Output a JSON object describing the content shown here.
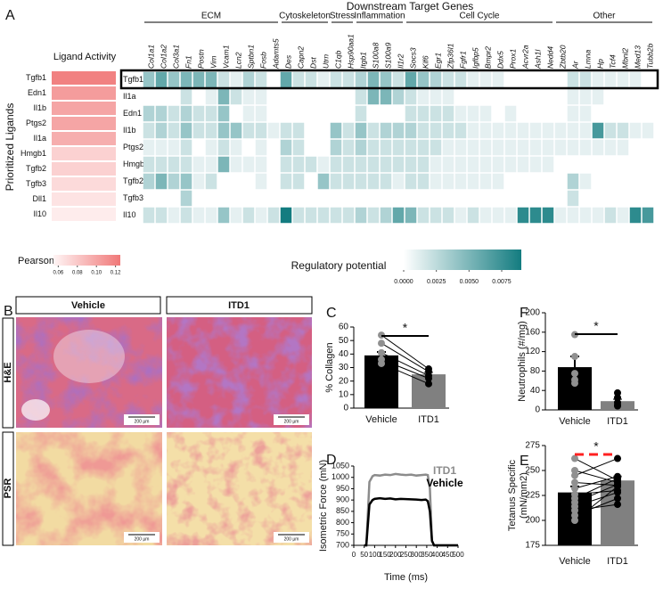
{
  "chart_data": [
    {
      "type": "heatmap",
      "title": "Ligand Activity",
      "ylabel": "Prioritized Ligands",
      "categories": [
        "Tgfb1",
        "Edn1",
        "Il1b",
        "Ptgs2",
        "Il1a",
        "Hmgb1",
        "Tgfb2",
        "Tgfb3",
        "Dll1",
        "Il10"
      ],
      "values": [
        0.12,
        0.105,
        0.1,
        0.1,
        0.095,
        0.075,
        0.075,
        0.07,
        0.065,
        0.06
      ],
      "colorbar_label": "Pearson",
      "colorlim": [
        0.055,
        0.125
      ],
      "colorticks": [
        0.06,
        0.08,
        {
          "value": 0.1,
          "label": "0.10"
        },
        0.12
      ],
      "colors": [
        "#fff5f5",
        "#f07878"
      ]
    },
    {
      "type": "heatmap",
      "panel_label": "A",
      "title": "Downstream Target Genes",
      "gene_groups": [
        {
          "name": "ECM",
          "genes": [
            "Col1a1",
            "Col1a2",
            "Col3a1",
            "Fn1",
            "Postn",
            "Vim",
            "Vcam1",
            "Lcn2",
            "Sptbn1",
            "Fosb",
            "Adamts5"
          ]
        },
        {
          "name": "Cytoskeleton",
          "genes": [
            "Des",
            "Capn2",
            "Dst",
            "Utrn"
          ]
        },
        {
          "name": "Stress",
          "genes": [
            "C1qb",
            "Hsp90aa1"
          ]
        },
        {
          "name": "Inflammation",
          "genes": [
            "Itgb1",
            "S100a8",
            "S100a9",
            "Il1r2"
          ]
        },
        {
          "name": "Cell Cycle",
          "genes": [
            "Socs3",
            "Klf6",
            "Egr1",
            "Zfp36l1",
            "Fgfr1",
            "Igfbp5",
            "Bmpr2",
            "Ddx5",
            "Prox1",
            "Acvr2a",
            "Ash1l",
            "Nedd4"
          ]
        },
        {
          "name": "Other",
          "genes": [
            "Zbtb20",
            "Ar",
            "Lmna",
            "Hp",
            "Tcf4",
            "Mbnl2",
            "Med13",
            "Tubb2b"
          ]
        }
      ],
      "rows": [
        "Tgfb1",
        "Il1a",
        "Edn1",
        "Il1b",
        "Ptgs2",
        "Hmgb1",
        "Tgfb2",
        "Tgfb3",
        "Il10"
      ],
      "values": [
        [
          0.004,
          0.006,
          0.004,
          0.005,
          0.005,
          0.005,
          0.002,
          0.001,
          0.003,
          0.002,
          null,
          0.006,
          0.002,
          0.002,
          0.001,
          0.002,
          0.002,
          0.003,
          0.005,
          0.004,
          0.002,
          0.006,
          0.004,
          0.003,
          0.002,
          0.002,
          0.001,
          0.001,
          0.001,
          null,
          null,
          null,
          null,
          null,
          0.002,
          0.002,
          0.001,
          0.001,
          0.001,
          0.001,
          null
        ],
        [
          null,
          null,
          null,
          0.002,
          null,
          0.001,
          0.005,
          0.002,
          0.001,
          0.001,
          null,
          null,
          null,
          null,
          null,
          null,
          null,
          0.002,
          0.005,
          0.005,
          0.003,
          0.002,
          0.001,
          0.001,
          0.001,
          null,
          null,
          null,
          null,
          null,
          null,
          null,
          null,
          null,
          0.001,
          0.001,
          0.001,
          null,
          null,
          null,
          null
        ],
        [
          0.003,
          0.003,
          0.002,
          0.003,
          0.002,
          0.002,
          0.004,
          null,
          0.001,
          0.001,
          null,
          null,
          null,
          null,
          null,
          null,
          null,
          0.002,
          null,
          null,
          null,
          0.002,
          0.002,
          0.002,
          0.002,
          0.001,
          0.001,
          0.001,
          null,
          0.001,
          null,
          null,
          null,
          null,
          0.001,
          0.001,
          null,
          null,
          null,
          null,
          null
        ],
        [
          0.002,
          0.003,
          0.002,
          0.004,
          0.002,
          0.002,
          0.004,
          0.004,
          0.002,
          0.002,
          0.001,
          0.002,
          0.002,
          null,
          null,
          0.004,
          0.002,
          0.004,
          0.002,
          0.003,
          0.003,
          0.003,
          0.002,
          0.002,
          0.002,
          0.002,
          0.001,
          0.001,
          0.001,
          0.001,
          0.001,
          0.001,
          0.001,
          0.001,
          0.001,
          0.001,
          0.007,
          0.002,
          0.002,
          0.001,
          0.001
        ],
        [
          0.001,
          0.001,
          0.001,
          0.002,
          null,
          0.001,
          0.002,
          0.001,
          null,
          0.001,
          null,
          0.003,
          0.002,
          null,
          null,
          0.003,
          0.002,
          0.003,
          0.002,
          0.002,
          0.002,
          0.002,
          0.002,
          0.002,
          0.001,
          0.001,
          0.001,
          0.001,
          0.001,
          0.001,
          0.001,
          0.001,
          0.001,
          0.001,
          0.001,
          0.001,
          0.001,
          0.001,
          0.001,
          null,
          null
        ],
        [
          0.002,
          0.002,
          0.002,
          0.002,
          0.001,
          0.001,
          0.005,
          0.001,
          0.001,
          0.001,
          null,
          0.002,
          0.002,
          0.002,
          0.001,
          0.002,
          0.002,
          0.002,
          0.002,
          0.002,
          0.002,
          0.002,
          0.002,
          0.001,
          0.001,
          0.001,
          0.001,
          0.001,
          0.001,
          0.001,
          0.001,
          0.001,
          0.001,
          null,
          null,
          null,
          null,
          null,
          null,
          null,
          null
        ],
        [
          0.003,
          0.005,
          0.003,
          0.004,
          0.001,
          0.002,
          null,
          null,
          null,
          0.001,
          null,
          0.002,
          0.002,
          null,
          0.004,
          0.002,
          0.002,
          0.002,
          0.002,
          0.002,
          0.001,
          0.002,
          0.002,
          0.001,
          0.001,
          0.001,
          0.001,
          0.001,
          0.001,
          null,
          null,
          null,
          null,
          null,
          0.003,
          0.001,
          null,
          null,
          null,
          null,
          null
        ],
        [
          null,
          null,
          null,
          0.003,
          null,
          null,
          null,
          null,
          null,
          null,
          null,
          null,
          null,
          null,
          null,
          null,
          null,
          null,
          null,
          null,
          null,
          null,
          null,
          null,
          null,
          null,
          null,
          null,
          null,
          null,
          null,
          null,
          null,
          null,
          0.002,
          null,
          null,
          null,
          null,
          null,
          null
        ],
        [
          0.002,
          0.002,
          0.001,
          0.002,
          0.001,
          0.001,
          0.004,
          0.001,
          0.002,
          0.001,
          0.002,
          0.009,
          0.002,
          0.002,
          0.002,
          0.002,
          0.002,
          0.003,
          0.002,
          0.003,
          0.006,
          0.005,
          0.002,
          0.002,
          0.002,
          0.001,
          0.002,
          0.001,
          0.001,
          0.001,
          0.008,
          0.008,
          0.008,
          0.001,
          0.001,
          0.001,
          0.001,
          0.002,
          0.001,
          0.008,
          0.007
        ]
      ],
      "colorbar_label": "Regulatory potential",
      "colorlim": [
        0,
        0.009
      ],
      "colorticks": [
        {
          "value": 0,
          "label": "0.0000"
        },
        {
          "value": 0.0025,
          "label": "0.0025"
        },
        {
          "value": 0.005,
          "label": "0.0050"
        },
        {
          "value": 0.0075,
          "label": "0.0075"
        }
      ],
      "colors": [
        "#ffffff",
        "#137c80"
      ]
    },
    {
      "type": "image_grid",
      "panel_label": "B",
      "columns": [
        "Vehicle",
        "ITD1"
      ],
      "rows": [
        "H&E",
        "PSR"
      ],
      "scale_bar": "200 µm"
    },
    {
      "type": "bar",
      "panel_label": "C",
      "ylabel": "% Collagen",
      "categories": [
        "Vehicle",
        "ITD1"
      ],
      "values": [
        39,
        25
      ],
      "errors": [
        2.5,
        1.5
      ],
      "points": [
        [
          54,
          48,
          41,
          36,
          33
        ],
        [
          29,
          27,
          24,
          22,
          18
        ]
      ],
      "paired": true,
      "annotation": "*",
      "ylim": [
        0,
        60
      ],
      "yticks": [
        0,
        10,
        20,
        30,
        40,
        50,
        60
      ],
      "colors": [
        "#000000",
        "#808080"
      ],
      "point_colors": [
        "#909090",
        "#000000"
      ],
      "sig_line_color": "#000000",
      "sig_line_dashed": false
    },
    {
      "type": "bar",
      "panel_label": "F",
      "ylabel": "Neutrophils (#/mg)",
      "categories": [
        "Vehicle",
        "ITD1"
      ],
      "values": [
        88,
        18
      ],
      "errors": [
        22,
        4
      ],
      "points": [
        [
          155,
          110,
          75,
          62,
          55
        ],
        [
          35,
          25,
          15,
          10,
          8
        ]
      ],
      "paired": false,
      "annotation": "*",
      "ylim": [
        0,
        200
      ],
      "yticks": [
        0,
        40,
        80,
        120,
        160,
        200
      ],
      "colors": [
        "#000000",
        "#808080"
      ],
      "point_colors": [
        "#909090",
        "#000000"
      ],
      "sig_line_color": "#000000",
      "sig_line_dashed": false
    },
    {
      "type": "line",
      "panel_label": "D",
      "xlabel": "Time (ms)",
      "ylabel": "Isometric Force (mN)",
      "x": [
        50,
        60,
        75,
        90,
        100,
        125,
        150,
        175,
        200,
        225,
        250,
        275,
        300,
        325,
        345,
        355,
        365,
        375,
        385,
        400,
        450,
        500
      ],
      "series": [
        {
          "name": "ITD1",
          "color": "#8c8c8c",
          "values": [
            700,
            700,
            980,
            1005,
            1010,
            1008,
            1012,
            1010,
            1015,
            1012,
            1010,
            1012,
            1008,
            1010,
            1012,
            1010,
            950,
            720,
            700,
            700,
            700,
            700
          ]
        },
        {
          "name": "Vehicle",
          "color": "#000000",
          "values": [
            700,
            700,
            880,
            900,
            905,
            908,
            905,
            907,
            903,
            905,
            904,
            903,
            902,
            900,
            902,
            895,
            850,
            720,
            700,
            700,
            700,
            700
          ]
        }
      ],
      "xlim": [
        0,
        500
      ],
      "xticks": [
        0,
        50,
        100,
        150,
        200,
        250,
        300,
        350,
        400,
        450,
        500
      ],
      "ylim": [
        700,
        1050
      ],
      "yticks": [
        700,
        750,
        800,
        850,
        900,
        950,
        1000,
        1050
      ]
    },
    {
      "type": "bar",
      "panel_label": "E",
      "ylabel": [
        "Tetanus Specific",
        "(mN/mm2)"
      ],
      "categories": [
        "Vehicle",
        "ITD1"
      ],
      "values": [
        228,
        240
      ],
      "errors": [
        6,
        4
      ],
      "points": [
        [
          262,
          250,
          245,
          238,
          232,
          226,
          222,
          218,
          214,
          210,
          205,
          200
        ],
        [
          240,
          238,
          262,
          235,
          244,
          230,
          242,
          236,
          228,
          216,
          222,
          234
        ]
      ],
      "paired": true,
      "annotation": "*",
      "ylim": [
        175,
        275
      ],
      "yticks": [
        175,
        200,
        225,
        250,
        275
      ],
      "colors": [
        "#000000",
        "#808080"
      ],
      "point_colors": [
        "#909090",
        "#000000"
      ],
      "sig_line_color": "#ff2020",
      "sig_line_dashed": true
    }
  ]
}
